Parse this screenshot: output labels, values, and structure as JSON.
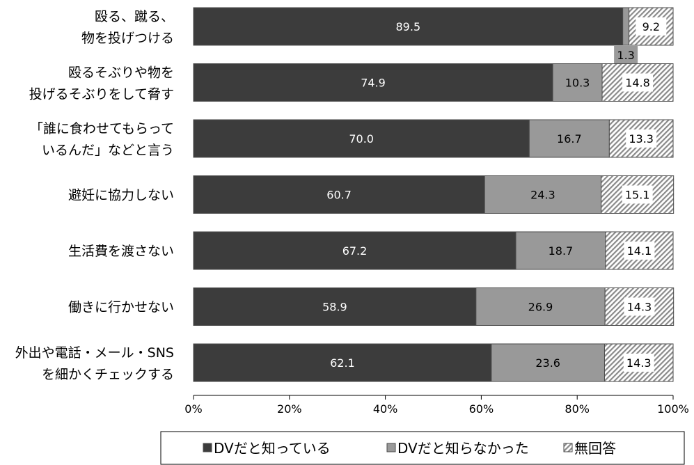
{
  "chart_data": {
    "type": "bar",
    "orientation": "horizontal",
    "stacked": true,
    "categories": [
      [
        "殴る、蹴る、",
        "物を投げつける"
      ],
      [
        "殴るそぶりや物を",
        "投げるそぶりをして脅す"
      ],
      [
        "「誰に食わせてもらって",
        "いるんだ」などと言う"
      ],
      [
        "避妊に協力しない"
      ],
      [
        "生活費を渡さない"
      ],
      [
        "働きに行かせない"
      ],
      [
        "外出や電話・メール・SNS",
        "を細かくチェックする"
      ]
    ],
    "series": [
      {
        "name": "DVだと知っている",
        "values": [
          89.5,
          74.9,
          70.0,
          60.7,
          67.2,
          58.9,
          62.1
        ],
        "labels": [
          "89.5",
          "74.9",
          "70.0",
          "60.7",
          "67.2",
          "58.9",
          "62.1"
        ],
        "color": "#3c3c3c",
        "pattern": "solid"
      },
      {
        "name": "DVだと知らなかった",
        "values": [
          1.3,
          10.3,
          16.7,
          24.3,
          18.7,
          26.9,
          23.6
        ],
        "labels": [
          "1.3",
          "10.3",
          "16.7",
          "24.3",
          "18.7",
          "26.9",
          "23.6"
        ],
        "color": "#999999",
        "pattern": "solid"
      },
      {
        "name": "無回答",
        "values": [
          9.2,
          14.8,
          13.3,
          15.1,
          14.1,
          14.3,
          14.3
        ],
        "labels": [
          "9.2",
          "14.8",
          "13.3",
          "15.1",
          "14.1",
          "14.3",
          "14.3"
        ],
        "color": "#bbbbbb",
        "pattern": "diagonal-hatch"
      }
    ],
    "xlim": [
      0,
      100
    ],
    "xticks": [
      "0%",
      "20%",
      "40%",
      "60%",
      "80%",
      "100%"
    ],
    "grid": false,
    "legend_position": "bottom"
  }
}
